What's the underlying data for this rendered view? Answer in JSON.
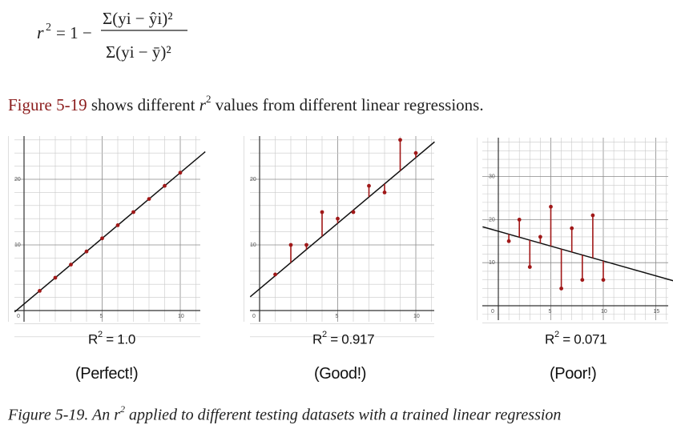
{
  "formula": {
    "lhs": "r",
    "lhs_exp": "2",
    "eq": "= 1 −",
    "numerator": "Σ(yi − ŷi)²",
    "denominator": "Σ(yi − ȳ)²"
  },
  "intro": {
    "xref": "Figure 5-19",
    "text_before": " shows different ",
    "r": "r",
    "exp": "2",
    "text_after": " values from different linear regressions."
  },
  "panels": [
    {
      "r2_prefix": "R",
      "r2_exp": "2",
      "r2_value": " = 1.0",
      "verdict": "(Perfect!)"
    },
    {
      "r2_prefix": "R",
      "r2_exp": "2",
      "r2_value": " = 0.917",
      "verdict": "(Good!)"
    },
    {
      "r2_prefix": "R",
      "r2_exp": "2",
      "r2_value": " = 0.071",
      "verdict": "(Poor!)"
    }
  ],
  "chart_data": [
    {
      "type": "scatter",
      "title": "",
      "x_ticks": [
        "0",
        "5",
        "10"
      ],
      "y_ticks": [
        "10",
        "20"
      ],
      "xlim": [
        0,
        11
      ],
      "ylim": [
        0,
        25
      ],
      "points": [
        [
          1,
          3
        ],
        [
          2,
          5
        ],
        [
          3,
          7
        ],
        [
          4,
          9
        ],
        [
          5,
          11
        ],
        [
          6,
          13
        ],
        [
          7,
          15
        ],
        [
          8,
          17
        ],
        [
          9,
          19
        ],
        [
          10,
          21
        ]
      ],
      "fit_line": {
        "slope": 2,
        "intercept": 1
      },
      "residual_color": "#a01818"
    },
    {
      "type": "scatter",
      "title": "",
      "x_ticks": [
        "0",
        "5",
        "10"
      ],
      "y_ticks": [
        "10",
        "20"
      ],
      "xlim": [
        0,
        11
      ],
      "ylim": [
        0,
        25
      ],
      "points": [
        [
          1,
          5.5
        ],
        [
          2,
          10
        ],
        [
          3,
          10
        ],
        [
          4,
          15
        ],
        [
          5,
          14
        ],
        [
          6,
          15
        ],
        [
          7,
          19
        ],
        [
          8,
          18
        ],
        [
          9,
          26
        ],
        [
          10,
          24
        ]
      ],
      "fit_line": {
        "slope": 2,
        "intercept": 3.3
      },
      "residual_color": "#a01818"
    },
    {
      "type": "scatter",
      "title": "",
      "x_ticks": [
        "0",
        "5",
        "10",
        "15"
      ],
      "y_ticks": [
        "10",
        "20",
        "30"
      ],
      "xlim": [
        0,
        15
      ],
      "ylim": [
        0,
        36
      ],
      "points": [
        [
          1,
          15
        ],
        [
          2,
          20
        ],
        [
          3,
          9
        ],
        [
          4,
          16
        ],
        [
          5,
          23
        ],
        [
          6,
          4
        ],
        [
          7,
          18
        ],
        [
          8,
          6
        ],
        [
          9,
          21
        ],
        [
          10,
          6
        ]
      ],
      "fit_line": {
        "slope": -0.69,
        "intercept": 17.3
      },
      "residual_color": "#a01818"
    }
  ],
  "caption": {
    "prefix": "Figure 5-19. An ",
    "r": "r",
    "exp": "2",
    "suffix": " applied to different testing datasets with a trained linear regression"
  }
}
